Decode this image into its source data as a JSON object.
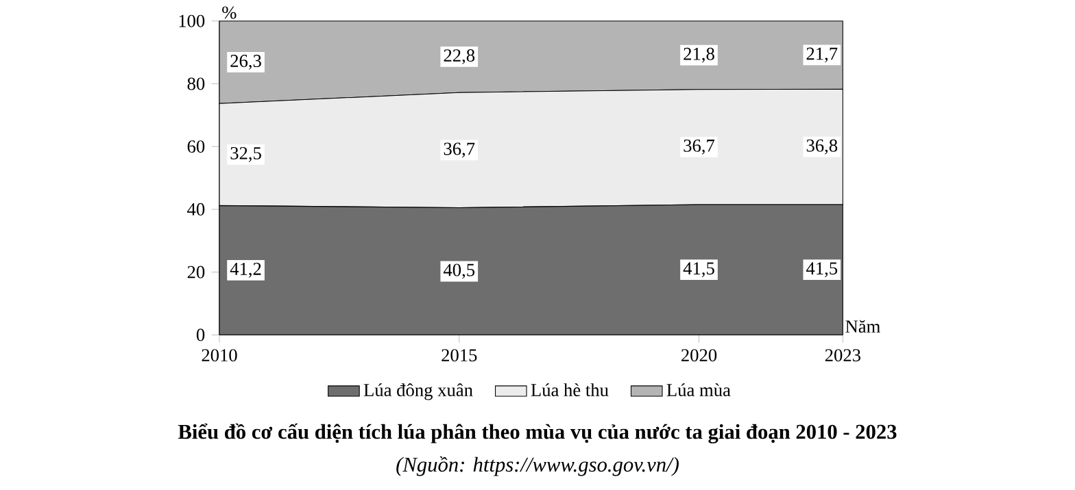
{
  "chart_data": {
    "type": "area",
    "stacked": true,
    "title": "Biểu đồ cơ cấu diện tích lúa phân theo mùa vụ của nước ta giai đoạn 2010 - 2023",
    "annotations": [
      "(Nguồn: https://www.gso.gov.vn/)"
    ],
    "xlabel": "Năm",
    "ylabel": "%",
    "x": [
      2010,
      2015,
      2020,
      2023
    ],
    "xlim": [
      2010,
      2023
    ],
    "xticks": [
      2010,
      2015,
      2020,
      2023
    ],
    "ylim": [
      0,
      100
    ],
    "yticks": [
      0,
      20,
      40,
      60,
      80,
      100
    ],
    "grid": false,
    "legend": "bottom",
    "series": [
      {
        "name": "Lúa đông xuân",
        "color": "#6e6e6e",
        "values": [
          41.2,
          40.5,
          41.5,
          41.5
        ],
        "value_labels": [
          "41,2",
          "40,5",
          "41,5",
          "41,5"
        ]
      },
      {
        "name": "Lúa hè thu",
        "color": "#ececec",
        "values": [
          32.5,
          36.7,
          36.7,
          36.8
        ],
        "value_labels": [
          "32,5",
          "36,7",
          "36,7",
          "36,8"
        ]
      },
      {
        "name": "Lúa mùa",
        "color": "#b4b4b4",
        "values": [
          26.3,
          22.8,
          21.8,
          21.7
        ],
        "value_labels": [
          "26,3",
          "22,8",
          "21,8",
          "21,7"
        ]
      }
    ]
  }
}
